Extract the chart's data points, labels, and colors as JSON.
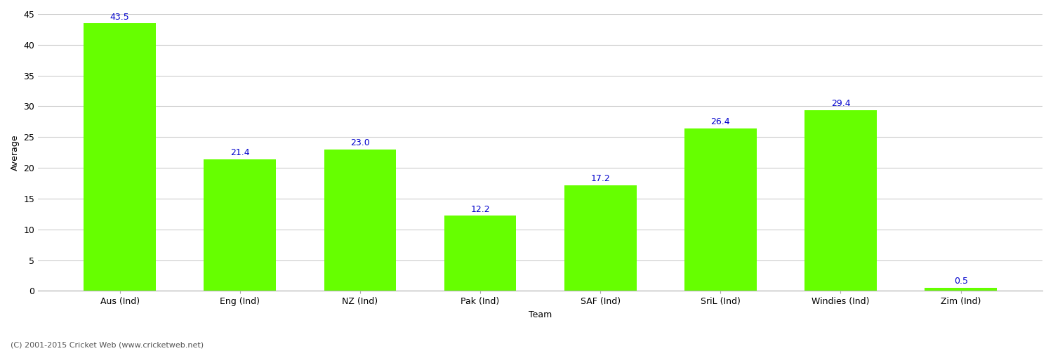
{
  "categories": [
    "Aus (Ind)",
    "Eng (Ind)",
    "NZ (Ind)",
    "Pak (Ind)",
    "SAF (Ind)",
    "SriL (Ind)",
    "Windies (Ind)",
    "Zim (Ind)"
  ],
  "values": [
    43.5,
    21.4,
    23.0,
    12.2,
    17.2,
    26.4,
    29.4,
    0.5
  ],
  "bar_color": "#66FF00",
  "label_color": "#0000CC",
  "ylabel": "Average",
  "xlabel": "Team",
  "ylim": [
    0,
    45
  ],
  "yticks": [
    0,
    5,
    10,
    15,
    20,
    25,
    30,
    35,
    40,
    45
  ],
  "background_color": "#ffffff",
  "grid_color": "#cccccc",
  "footer": "(C) 2001-2015 Cricket Web (www.cricketweb.net)",
  "label_fontsize": 9,
  "tick_fontsize": 9,
  "footer_fontsize": 8,
  "bar_width": 0.6
}
